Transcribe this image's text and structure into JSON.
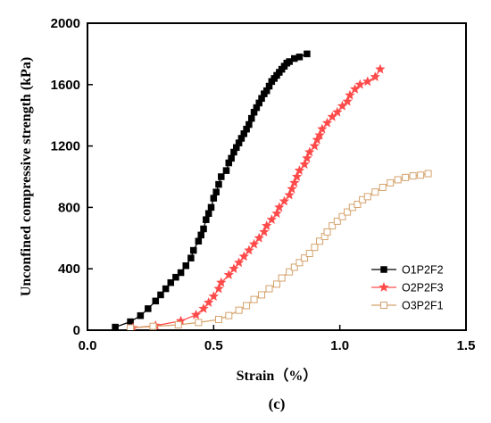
{
  "chart_data": {
    "type": "line",
    "xlabel": "Strain（%）",
    "ylabel": "Unconfined compressive strength (kPa)",
    "panel_label": "(c)",
    "xlim": [
      0.0,
      1.5
    ],
    "ylim": [
      0,
      2000
    ],
    "x_ticks": [
      0.0,
      0.5,
      1.0,
      1.5
    ],
    "x_tick_labels": [
      "0.0",
      "0.5",
      "1.0",
      "1.5"
    ],
    "y_ticks": [
      0,
      400,
      800,
      1200,
      1600,
      2000
    ],
    "y_tick_labels": [
      "0",
      "400",
      "800",
      "1200",
      "1600",
      "2000"
    ],
    "legend_position": "bottom-right",
    "series": [
      {
        "name": "O1P2F2",
        "color": "#000000",
        "marker": "filled-square",
        "x": [
          0.11,
          0.17,
          0.21,
          0.24,
          0.27,
          0.29,
          0.31,
          0.33,
          0.35,
          0.37,
          0.39,
          0.41,
          0.42,
          0.44,
          0.45,
          0.46,
          0.47,
          0.48,
          0.49,
          0.5,
          0.51,
          0.52,
          0.53,
          0.55,
          0.56,
          0.57,
          0.58,
          0.59,
          0.6,
          0.61,
          0.62,
          0.63,
          0.64,
          0.65,
          0.66,
          0.67,
          0.68,
          0.69,
          0.7,
          0.71,
          0.72,
          0.73,
          0.74,
          0.75,
          0.76,
          0.77,
          0.78,
          0.79,
          0.8,
          0.82,
          0.84,
          0.87
        ],
        "y": [
          20,
          55,
          95,
          140,
          190,
          230,
          270,
          310,
          345,
          375,
          420,
          470,
          520,
          580,
          620,
          660,
          720,
          760,
          800,
          860,
          900,
          950,
          1000,
          1040,
          1090,
          1120,
          1160,
          1190,
          1220,
          1250,
          1280,
          1310,
          1340,
          1380,
          1420,
          1450,
          1480,
          1510,
          1540,
          1560,
          1590,
          1620,
          1640,
          1660,
          1680,
          1700,
          1720,
          1740,
          1750,
          1770,
          1780,
          1800
        ]
      },
      {
        "name": "O2P2F3",
        "color": "#ff4a4a",
        "marker": "star",
        "x": [
          0.18,
          0.27,
          0.37,
          0.43,
          0.46,
          0.48,
          0.5,
          0.52,
          0.53,
          0.56,
          0.58,
          0.6,
          0.62,
          0.64,
          0.66,
          0.68,
          0.7,
          0.71,
          0.73,
          0.75,
          0.76,
          0.78,
          0.8,
          0.81,
          0.82,
          0.83,
          0.84,
          0.86,
          0.87,
          0.88,
          0.9,
          0.91,
          0.92,
          0.93,
          0.95,
          0.97,
          0.99,
          1.01,
          1.03,
          1.04,
          1.06,
          1.08,
          1.11,
          1.14,
          1.16
        ],
        "y": [
          15,
          30,
          60,
          100,
          140,
          180,
          220,
          270,
          310,
          360,
          400,
          440,
          480,
          520,
          560,
          600,
          640,
          680,
          720,
          760,
          800,
          840,
          880,
          920,
          960,
          1000,
          1040,
          1080,
          1120,
          1160,
          1200,
          1240,
          1270,
          1310,
          1350,
          1390,
          1420,
          1460,
          1490,
          1530,
          1570,
          1600,
          1620,
          1650,
          1700
        ]
      },
      {
        "name": "O3P2F1",
        "color": "#d5a26c",
        "marker": "open-square",
        "x": [
          0.17,
          0.26,
          0.36,
          0.44,
          0.52,
          0.56,
          0.6,
          0.63,
          0.66,
          0.69,
          0.72,
          0.75,
          0.77,
          0.8,
          0.82,
          0.84,
          0.86,
          0.88,
          0.9,
          0.92,
          0.94,
          0.95,
          0.97,
          0.99,
          1.01,
          1.03,
          1.05,
          1.07,
          1.09,
          1.11,
          1.14,
          1.17,
          1.2,
          1.23,
          1.26,
          1.29,
          1.32,
          1.35
        ],
        "y": [
          15,
          25,
          35,
          50,
          70,
          95,
          130,
          160,
          200,
          230,
          270,
          300,
          340,
          380,
          410,
          440,
          470,
          500,
          540,
          580,
          610,
          640,
          680,
          710,
          740,
          770,
          800,
          820,
          850,
          870,
          900,
          930,
          960,
          980,
          995,
          1005,
          1010,
          1020
        ]
      }
    ]
  }
}
